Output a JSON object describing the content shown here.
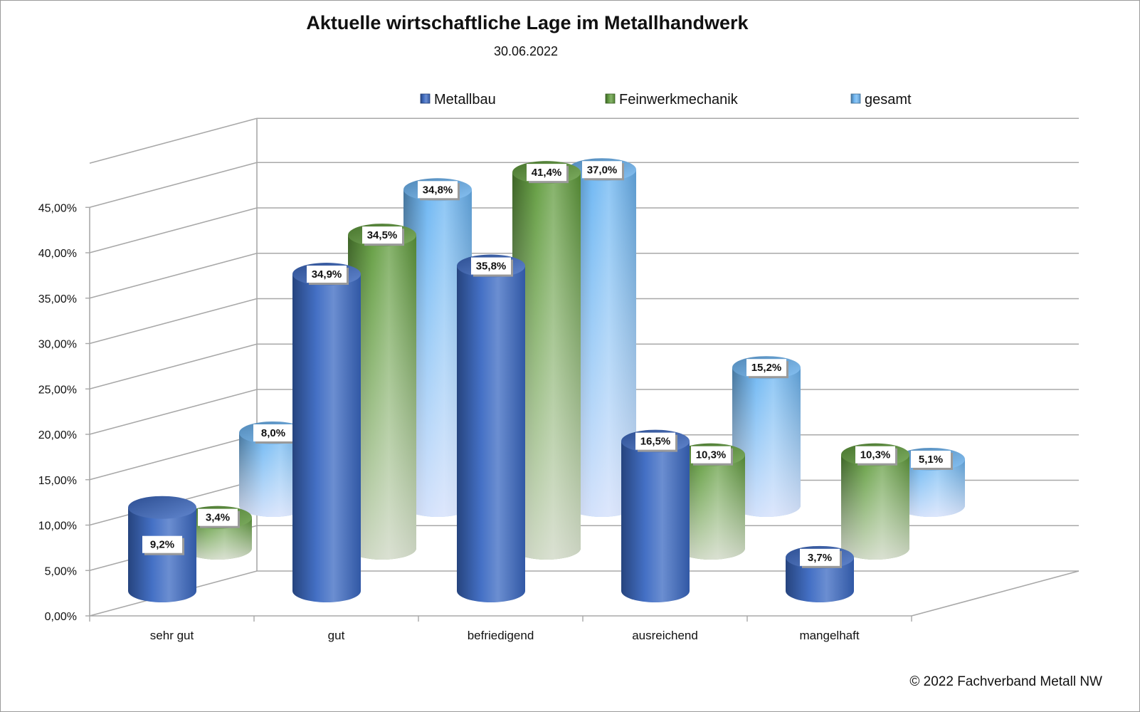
{
  "chart_data": {
    "type": "bar",
    "title": "Aktuelle wirtschaftliche Lage im Metallhandwerk",
    "subtitle": "30.06.2022",
    "categories": [
      "sehr gut",
      "gut",
      "befriedigend",
      "ausreichend",
      "mangelhaft"
    ],
    "series": [
      {
        "name": "Metallbau",
        "values": [
          9.2,
          34.9,
          35.8,
          16.5,
          3.7
        ],
        "labels": [
          "9,2%",
          "34,9%",
          "35,8%",
          "16,5%",
          "3,7%"
        ],
        "color": "#3A68C2"
      },
      {
        "name": "Feinwerkmechanik",
        "values": [
          3.4,
          34.5,
          41.4,
          10.3,
          10.3
        ],
        "labels": [
          "3,4%",
          "34,5%",
          "41,4%",
          "10,3%",
          "10,3%"
        ],
        "color": "#5E9A3A"
      },
      {
        "name": "gesamt",
        "values": [
          8.0,
          34.8,
          37.0,
          15.2,
          5.1
        ],
        "labels": [
          "8,0%",
          "34,8%",
          "37,0%",
          "15,2%",
          "5,1%"
        ],
        "color": "#6AB4F2"
      }
    ],
    "ylim": [
      0,
      45
    ],
    "yticks": [
      "0,00%",
      "5,00%",
      "10,00%",
      "15,00%",
      "20,00%",
      "25,00%",
      "30,00%",
      "35,00%",
      "40,00%",
      "45,00%"
    ],
    "grid": true,
    "legend_position": "top",
    "style": "3d-cylinder"
  },
  "footer": {
    "copyright": "© 2022 Fachverband Metall NW"
  }
}
